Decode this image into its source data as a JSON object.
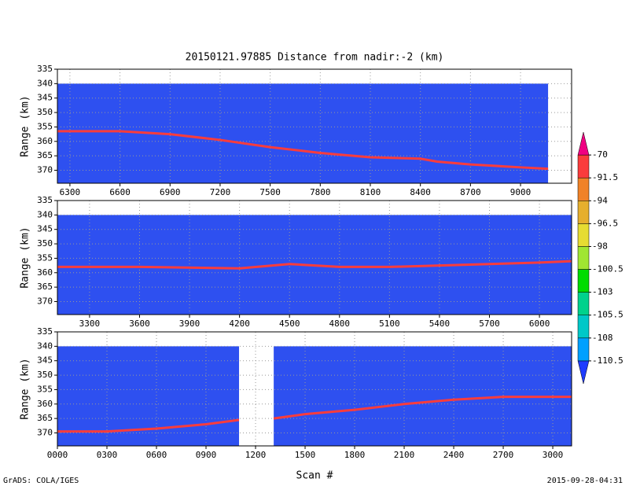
{
  "title": "20150121.97885   Distance from nadir:-2 (km)",
  "xlabel": "Scan #",
  "footer": {
    "left": "GrADS: COLA/IGES",
    "right": "2015-09-28-04:31"
  },
  "colorbar": {
    "levels": [
      -110.5,
      -108,
      -105.5,
      -103,
      -100.5,
      -98,
      -96.5,
      -94,
      -91.5,
      -70
    ],
    "colors": [
      "#1e3cff",
      "#00a0ff",
      "#00c8c8",
      "#00d28c",
      "#00dc00",
      "#a0e632",
      "#e6dc32",
      "#e6af2d",
      "#f08228",
      "#fa3c3c",
      "#f00082"
    ]
  },
  "chart_data": [
    {
      "type": "line",
      "ylabel": "Range (km)",
      "grid": true,
      "xlim": [
        6225,
        9306
      ],
      "ylim": [
        374.5,
        335
      ],
      "xticks": [
        6300,
        6600,
        6900,
        7200,
        7500,
        7800,
        8100,
        8400,
        8700,
        9000
      ],
      "yticks": [
        335,
        340,
        345,
        350,
        355,
        360,
        365,
        370
      ],
      "coverage": [
        [
          6225,
          9165
        ]
      ],
      "coverage_top": 340,
      "coverage_color": "#2e50f0",
      "series": [
        {
          "color": "#fa3c3c",
          "x": [
            6225,
            6600,
            6900,
            7200,
            7500,
            7800,
            8100,
            8400,
            8500,
            8700,
            9000,
            9165
          ],
          "values": [
            356.5,
            356.5,
            357.5,
            359.5,
            362,
            364,
            365.5,
            366,
            367,
            368,
            369,
            369.5
          ]
        }
      ]
    },
    {
      "type": "line",
      "ylabel": "Range (km)",
      "grid": true,
      "xlim": [
        3107,
        6193
      ],
      "ylim": [
        374.5,
        335
      ],
      "xticks": [
        3300,
        3600,
        3900,
        4200,
        4500,
        4800,
        5100,
        5400,
        5700,
        6000
      ],
      "yticks": [
        335,
        340,
        345,
        350,
        355,
        360,
        365,
        370
      ],
      "coverage": [
        [
          3107,
          6193
        ]
      ],
      "coverage_top": 340,
      "coverage_color": "#2e50f0",
      "series": [
        {
          "color": "#fa3c3c",
          "x": [
            3107,
            3600,
            4200,
            4500,
            4800,
            5100,
            5400,
            5700,
            6000,
            6193
          ],
          "values": [
            358,
            358,
            358.5,
            357,
            358,
            358,
            357.5,
            357,
            356.5,
            356
          ]
        }
      ]
    },
    {
      "type": "line",
      "ylabel": "Range (km)",
      "grid": true,
      "xlim": [
        0,
        3114
      ],
      "ylim": [
        374.5,
        335
      ],
      "xticks": [
        {
          "value": 0,
          "label": "0000"
        },
        {
          "value": 300,
          "label": "0300"
        },
        {
          "value": 600,
          "label": "0600"
        },
        {
          "value": 900,
          "label": "0900"
        },
        1200,
        1500,
        1800,
        2100,
        2400,
        2700,
        3000
      ],
      "yticks": [
        335,
        340,
        345,
        350,
        355,
        360,
        365,
        370
      ],
      "coverage": [
        [
          0,
          1100
        ],
        [
          1310,
          3114
        ]
      ],
      "coverage_top": 340,
      "coverage_color": "#2e50f0",
      "series": [
        {
          "color": "#fa3c3c",
          "x": [
            0,
            300,
            600,
            900,
            1100,
            1200,
            1310,
            1500,
            1800,
            2100,
            2400,
            2700,
            3000,
            3114
          ],
          "values": [
            369.5,
            369.5,
            368.5,
            367,
            365.5,
            null,
            365,
            363.5,
            362,
            360,
            358.5,
            357.5,
            357.5,
            357.5
          ]
        }
      ]
    }
  ]
}
